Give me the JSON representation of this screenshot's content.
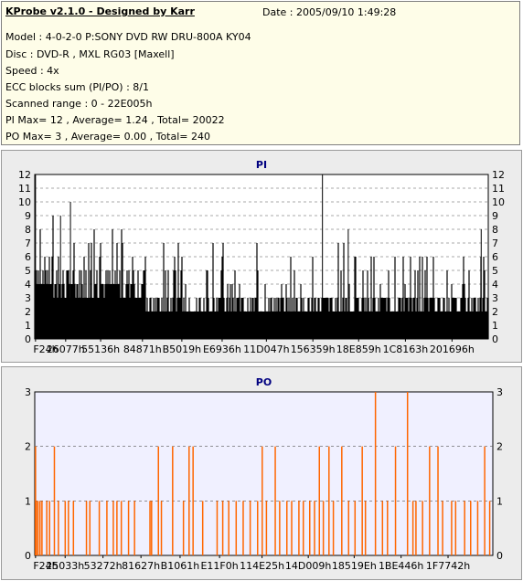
{
  "header": {
    "title": "KProbe v2.1.0 - Designed by Karr",
    "date": "Date : 2005/09/10 1:49:28",
    "lines": [
      "Model : 4-0-2-0 P:SONY    DVD RW DRU-800A  KY04",
      "Disc : DVD-R , MXL RG03 [Maxell]",
      "Speed : 4x",
      "ECC blocks sum (PI/PO) : 8/1",
      "Scanned range : 0 - 22E005h",
      "PI Max= 12 , Average= 1.24 , Total= 20022",
      "PO Max= 3 , Average= 0.00 , Total= 240"
    ]
  },
  "colors": {
    "pi_bars": "#000000",
    "po_bars": "#ff6600",
    "plot_bg_pi": "#ffffff",
    "plot_bg_po": "#f0f0ff",
    "panel_bg": "#ececec",
    "title": "#000080",
    "gridline": "#555555"
  },
  "chart_data": [
    {
      "type": "bar",
      "title": "PI",
      "ylim": [
        0,
        12
      ],
      "yticks": [
        0,
        1,
        2,
        3,
        4,
        5,
        6,
        7,
        8,
        9,
        10,
        11,
        12
      ],
      "grid": "dashed horizontal",
      "xtick_labels": [
        "F24h",
        "26077h",
        "55136h",
        "84871h",
        "B5019h",
        "E6936h",
        "11D047h",
        "156359h",
        "18E859h",
        "1C8163h",
        "201696h"
      ],
      "xtick_values": [
        3876,
        155767,
        332086,
        542833,
        741401,
        944438,
        1167431,
        1401689,
        1632345,
        1868131,
        2102934
      ],
      "xlim": [
        0,
        2285573
      ],
      "noise_values_by_segment": [
        {
          "x": [
            0,
            95000
          ],
          "typical": [
            4,
            6
          ],
          "peaks": [
            7,
            8,
            9
          ]
        },
        {
          "x": [
            95000,
            560000
          ],
          "typical": [
            3,
            5
          ],
          "peaks": [
            6,
            7,
            8
          ]
        },
        {
          "x": [
            560000,
            1600000
          ],
          "typical": [
            2,
            3
          ],
          "peaks": [
            4,
            5,
            6,
            7
          ]
        },
        {
          "x": [
            1600000,
            2285573
          ],
          "typical": [
            2,
            3
          ],
          "peaks": [
            4,
            5,
            6
          ]
        }
      ],
      "notable_peaks": [
        {
          "x": 3876,
          "value": 12
        },
        {
          "x": 130000,
          "value": 9
        },
        {
          "x": 180000,
          "value": 10
        },
        {
          "x": 1450000,
          "value": 12
        },
        {
          "x": 1580000,
          "value": 8
        },
        {
          "x": 2250000,
          "value": 8
        }
      ]
    },
    {
      "type": "bar",
      "title": "PO",
      "ylim": [
        0,
        3
      ],
      "yticks": [
        0,
        1,
        2,
        3
      ],
      "grid": "dashed horizontal",
      "xtick_labels": [
        "F24h",
        "25033h",
        "53272h",
        "81627h",
        "B1061h",
        "E11F0h",
        "114E25h",
        "14D009h",
        "18519Eh",
        "1BE446h",
        "1F7742h"
      ],
      "xtick_values": [
        3876,
        151603,
        340594,
        529959,
        725089,
        922096,
        1134117,
        1364745,
        1593758,
        1827910,
        2062146
      ],
      "xlim": [
        0,
        2285573
      ],
      "bars": [
        {
          "x": 3876,
          "value": 2
        },
        {
          "x": 8000,
          "value": 1
        },
        {
          "x": 16000,
          "value": 1
        },
        {
          "x": 26000,
          "value": 1
        },
        {
          "x": 36000,
          "value": 1
        },
        {
          "x": 60000,
          "value": 1
        },
        {
          "x": 74000,
          "value": 1
        },
        {
          "x": 98000,
          "value": 2
        },
        {
          "x": 118000,
          "value": 1
        },
        {
          "x": 152000,
          "value": 1
        },
        {
          "x": 168000,
          "value": 1
        },
        {
          "x": 193000,
          "value": 1
        },
        {
          "x": 258000,
          "value": 1
        },
        {
          "x": 275000,
          "value": 1
        },
        {
          "x": 322000,
          "value": 1
        },
        {
          "x": 360000,
          "value": 1
        },
        {
          "x": 392000,
          "value": 1
        },
        {
          "x": 410000,
          "value": 1
        },
        {
          "x": 432000,
          "value": 1
        },
        {
          "x": 468000,
          "value": 1
        },
        {
          "x": 498000,
          "value": 1
        },
        {
          "x": 575000,
          "value": 1
        },
        {
          "x": 583000,
          "value": 1
        },
        {
          "x": 617000,
          "value": 2
        },
        {
          "x": 632000,
          "value": 1
        },
        {
          "x": 688000,
          "value": 2
        },
        {
          "x": 742000,
          "value": 1
        },
        {
          "x": 770000,
          "value": 2
        },
        {
          "x": 790000,
          "value": 2
        },
        {
          "x": 838000,
          "value": 1
        },
        {
          "x": 910000,
          "value": 1
        },
        {
          "x": 938000,
          "value": 1
        },
        {
          "x": 968000,
          "value": 1
        },
        {
          "x": 1005000,
          "value": 1
        },
        {
          "x": 1040000,
          "value": 1
        },
        {
          "x": 1075000,
          "value": 1
        },
        {
          "x": 1112000,
          "value": 1
        },
        {
          "x": 1135000,
          "value": 2
        },
        {
          "x": 1156000,
          "value": 1
        },
        {
          "x": 1200000,
          "value": 2
        },
        {
          "x": 1222000,
          "value": 1
        },
        {
          "x": 1258000,
          "value": 1
        },
        {
          "x": 1282000,
          "value": 1
        },
        {
          "x": 1318000,
          "value": 1
        },
        {
          "x": 1340000,
          "value": 1
        },
        {
          "x": 1372000,
          "value": 1
        },
        {
          "x": 1396000,
          "value": 1
        },
        {
          "x": 1420000,
          "value": 2
        },
        {
          "x": 1440000,
          "value": 1
        },
        {
          "x": 1468000,
          "value": 2
        },
        {
          "x": 1490000,
          "value": 1
        },
        {
          "x": 1532000,
          "value": 2
        },
        {
          "x": 1566000,
          "value": 1
        },
        {
          "x": 1598000,
          "value": 1
        },
        {
          "x": 1634000,
          "value": 2
        },
        {
          "x": 1650000,
          "value": 1
        },
        {
          "x": 1700000,
          "value": 3
        },
        {
          "x": 1735000,
          "value": 1
        },
        {
          "x": 1760000,
          "value": 1
        },
        {
          "x": 1800000,
          "value": 2
        },
        {
          "x": 1860000,
          "value": 3
        },
        {
          "x": 1887000,
          "value": 1
        },
        {
          "x": 1902000,
          "value": 1
        },
        {
          "x": 1935000,
          "value": 1
        },
        {
          "x": 1970000,
          "value": 2
        },
        {
          "x": 2012000,
          "value": 2
        },
        {
          "x": 2035000,
          "value": 1
        },
        {
          "x": 2080000,
          "value": 1
        },
        {
          "x": 2100000,
          "value": 1
        },
        {
          "x": 2145000,
          "value": 1
        },
        {
          "x": 2175000,
          "value": 1
        },
        {
          "x": 2210000,
          "value": 1
        },
        {
          "x": 2245000,
          "value": 2
        },
        {
          "x": 2270000,
          "value": 1
        }
      ]
    }
  ]
}
